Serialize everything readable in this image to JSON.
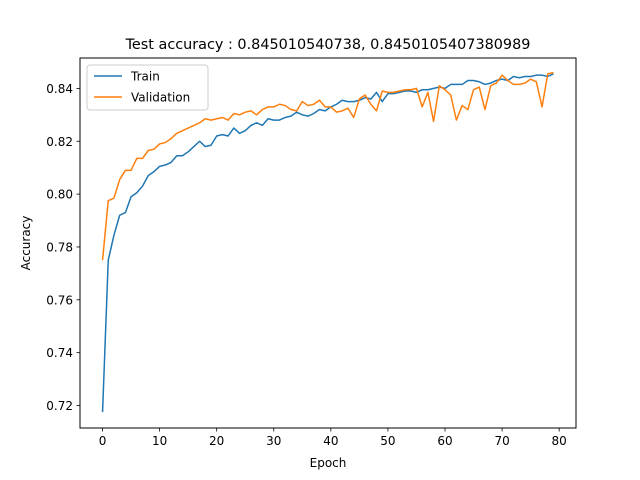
{
  "chart_data": {
    "type": "line",
    "title": "Test accuracy : 0.845010540738, 0.8450105407380989",
    "xlabel": "Epoch",
    "ylabel": "Accuracy",
    "xlim": [
      -3.95,
      82.95
    ],
    "ylim": [
      0.7115,
      0.8515
    ],
    "xticks": [
      0,
      10,
      20,
      30,
      40,
      50,
      60,
      70,
      80
    ],
    "xtick_labels": [
      "0",
      "10",
      "20",
      "30",
      "40",
      "50",
      "60",
      "70",
      "80"
    ],
    "yticks": [
      0.72,
      0.74,
      0.76,
      0.78,
      0.8,
      0.82,
      0.84
    ],
    "ytick_labels": [
      "0.72",
      "0.74",
      "0.76",
      "0.78",
      "0.80",
      "0.82",
      "0.84"
    ],
    "grid": false,
    "legend_position": "upper-left",
    "x": [
      0,
      1,
      2,
      3,
      4,
      5,
      6,
      7,
      8,
      9,
      10,
      11,
      12,
      13,
      14,
      15,
      16,
      17,
      18,
      19,
      20,
      21,
      22,
      23,
      24,
      25,
      26,
      27,
      28,
      29,
      30,
      31,
      32,
      33,
      34,
      35,
      36,
      37,
      38,
      39,
      40,
      41,
      42,
      43,
      44,
      45,
      46,
      47,
      48,
      49,
      50,
      51,
      52,
      53,
      54,
      55,
      56,
      57,
      58,
      59,
      60,
      61,
      62,
      63,
      64,
      65,
      66,
      67,
      68,
      69,
      70,
      71,
      72,
      73,
      74,
      75,
      76,
      77,
      78,
      79
    ],
    "series": [
      {
        "name": "Train",
        "color": "#1f77b4",
        "values": [
          0.7175,
          0.775,
          0.7845,
          0.792,
          0.793,
          0.799,
          0.8005,
          0.803,
          0.807,
          0.8085,
          0.8105,
          0.811,
          0.812,
          0.8145,
          0.8145,
          0.816,
          0.818,
          0.82,
          0.818,
          0.8185,
          0.822,
          0.8225,
          0.822,
          0.825,
          0.823,
          0.824,
          0.826,
          0.827,
          0.826,
          0.8285,
          0.828,
          0.828,
          0.829,
          0.8295,
          0.831,
          0.83,
          0.8295,
          0.8305,
          0.832,
          0.8315,
          0.833,
          0.834,
          0.8355,
          0.835,
          0.835,
          0.8355,
          0.8365,
          0.836,
          0.8385,
          0.835,
          0.838,
          0.838,
          0.8385,
          0.839,
          0.839,
          0.8385,
          0.8395,
          0.8395,
          0.84,
          0.8405,
          0.84,
          0.8415,
          0.8415,
          0.8415,
          0.843,
          0.843,
          0.8425,
          0.8415,
          0.842,
          0.843,
          0.8435,
          0.843,
          0.8445,
          0.844,
          0.8445,
          0.8445,
          0.845,
          0.845,
          0.8445,
          0.8455
        ]
      },
      {
        "name": "Validation",
        "color": "#ff7f0e",
        "values": [
          0.775,
          0.7975,
          0.7985,
          0.8055,
          0.809,
          0.809,
          0.8135,
          0.8135,
          0.8165,
          0.817,
          0.819,
          0.8195,
          0.821,
          0.823,
          0.824,
          0.825,
          0.826,
          0.827,
          0.8285,
          0.828,
          0.8285,
          0.829,
          0.828,
          0.8305,
          0.83,
          0.831,
          0.8315,
          0.83,
          0.832,
          0.833,
          0.833,
          0.834,
          0.8335,
          0.832,
          0.8315,
          0.835,
          0.8335,
          0.834,
          0.8355,
          0.833,
          0.833,
          0.831,
          0.8315,
          0.8325,
          0.829,
          0.836,
          0.8375,
          0.834,
          0.8315,
          0.839,
          0.8385,
          0.8385,
          0.839,
          0.8395,
          0.8395,
          0.84,
          0.833,
          0.8385,
          0.8275,
          0.841,
          0.8395,
          0.8375,
          0.828,
          0.8335,
          0.832,
          0.8395,
          0.8405,
          0.832,
          0.841,
          0.842,
          0.845,
          0.843,
          0.8415,
          0.8415,
          0.842,
          0.8435,
          0.8425,
          0.833,
          0.8455,
          0.846
        ]
      }
    ]
  }
}
